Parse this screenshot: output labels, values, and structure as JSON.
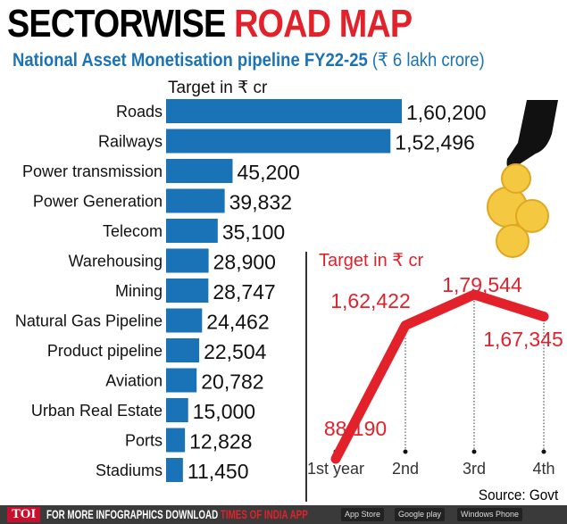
{
  "title": {
    "part1": "SECTORWISE",
    "part2": "ROAD MAP"
  },
  "subtitle": {
    "bold": "National Asset Monetisation pipeline FY22-25",
    "plain": "(₹ 6 lakh crore)"
  },
  "colors": {
    "bar": "#1a73b7",
    "line": "#e3212b",
    "coin": "#f5c842"
  },
  "chart_data": [
    {
      "type": "bar",
      "orientation": "horizontal",
      "title": "Target in ₹ cr",
      "categories": [
        "Roads",
        "Railways",
        "Power transmission",
        "Power Generation",
        "Telecom",
        "Warehousing",
        "Mining",
        "Natural Gas Pipeline",
        "Product pipeline",
        "Aviation",
        "Urban Real Estate",
        "Ports",
        "Stadiums"
      ],
      "values": [
        160200,
        152496,
        45200,
        39832,
        35100,
        28900,
        28747,
        24462,
        22504,
        20782,
        15000,
        12828,
        11450
      ],
      "value_labels": [
        "1,60,200",
        "1,52,496",
        "45,200",
        "39,832",
        "35,100",
        "28,900",
        "28,747",
        "24,462",
        "22,504",
        "20,782",
        "15,000",
        "12,828",
        "11,450"
      ]
    },
    {
      "type": "line",
      "title": "Target in ₹ cr",
      "categories": [
        "1st year",
        "2nd",
        "3rd",
        "4th"
      ],
      "values": [
        88190,
        162422,
        179544,
        167345
      ],
      "value_labels": [
        "88,190",
        "1,62,422",
        "1,79,544",
        "1,67,345"
      ]
    }
  ],
  "source": "Source: Govt",
  "footer": {
    "logo": "TOI",
    "text": "FOR MORE  INFOGRAPHICS DOWNLOAD",
    "app": "TIMES OF INDIA  APP",
    "stores": [
      "App Store",
      "Google play",
      "Windows Phone"
    ]
  }
}
